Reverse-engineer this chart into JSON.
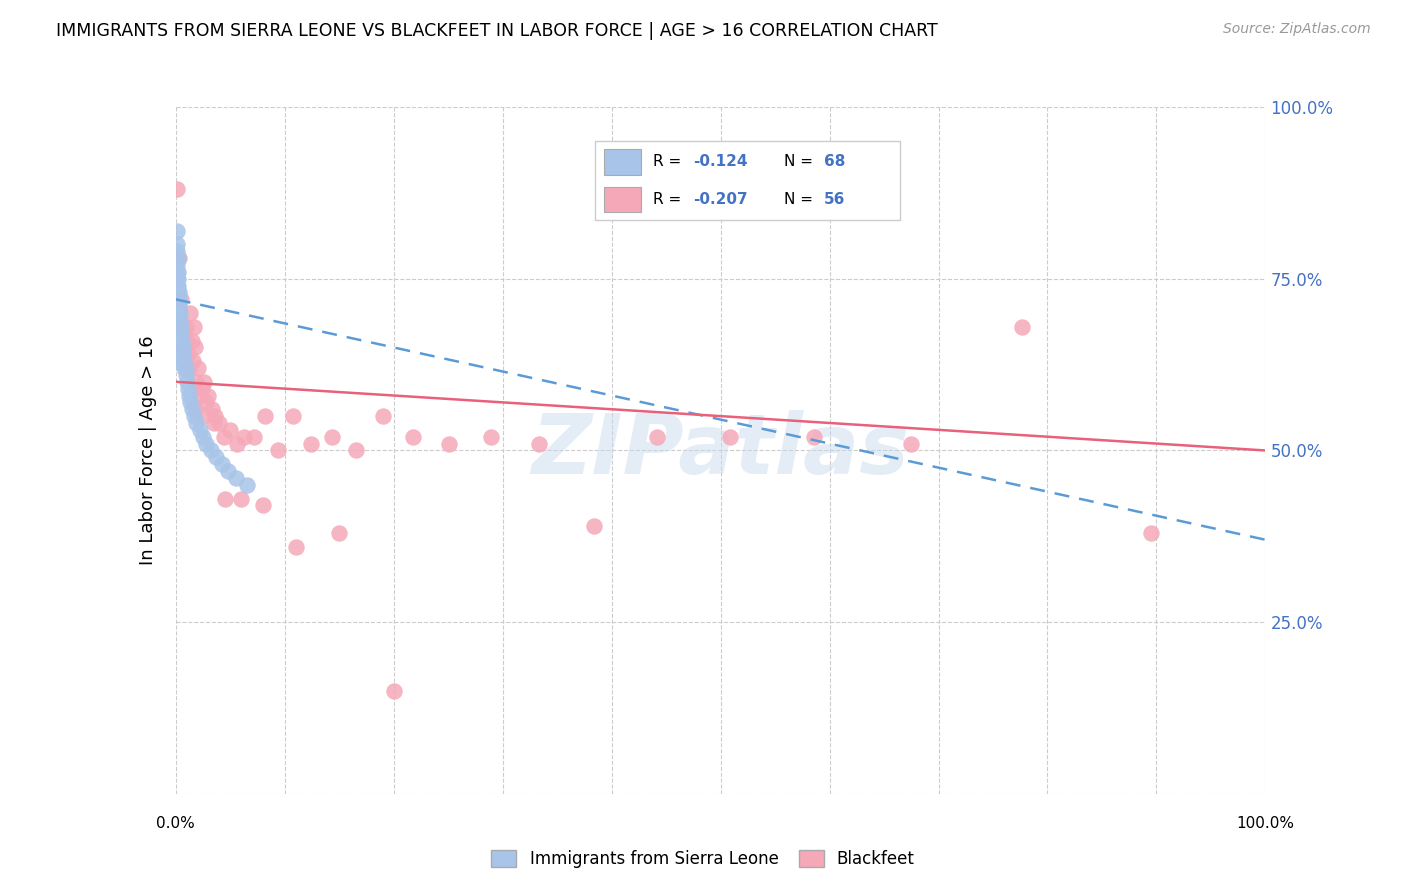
{
  "title": "IMMIGRANTS FROM SIERRA LEONE VS BLACKFEET IN LABOR FORCE | AGE > 16 CORRELATION CHART",
  "source": "Source: ZipAtlas.com",
  "ylabel": "In Labor Force | Age > 16",
  "y_ticks": [
    0.0,
    0.25,
    0.5,
    0.75,
    1.0
  ],
  "y_tick_labels": [
    "",
    "25.0%",
    "50.0%",
    "75.0%",
    "100.0%"
  ],
  "sierra_leone_R": -0.124,
  "sierra_leone_N": 68,
  "blackfeet_R": -0.207,
  "blackfeet_N": 56,
  "sierra_leone_color": "#a8c4e8",
  "blackfeet_color": "#f5a8b8",
  "sierra_leone_line_color": "#5b9bd5",
  "blackfeet_line_color": "#e8607a",
  "watermark": "ZIPatlas",
  "sierra_leone_x": [
    0.001,
    0.001,
    0.001,
    0.001,
    0.001,
    0.001,
    0.001,
    0.001,
    0.001,
    0.001,
    0.002,
    0.002,
    0.002,
    0.002,
    0.002,
    0.002,
    0.002,
    0.002,
    0.002,
    0.002,
    0.002,
    0.002,
    0.002,
    0.002,
    0.002,
    0.003,
    0.003,
    0.003,
    0.003,
    0.003,
    0.003,
    0.003,
    0.003,
    0.003,
    0.004,
    0.004,
    0.004,
    0.004,
    0.004,
    0.005,
    0.005,
    0.005,
    0.005,
    0.006,
    0.006,
    0.006,
    0.007,
    0.007,
    0.008,
    0.008,
    0.009,
    0.009,
    0.01,
    0.011,
    0.012,
    0.013,
    0.015,
    0.017,
    0.019,
    0.022,
    0.025,
    0.028,
    0.032,
    0.037,
    0.042,
    0.048,
    0.055,
    0.065
  ],
  "sierra_leone_y": [
    0.82,
    0.8,
    0.78,
    0.79,
    0.77,
    0.76,
    0.75,
    0.74,
    0.73,
    0.72,
    0.78,
    0.76,
    0.75,
    0.74,
    0.73,
    0.72,
    0.71,
    0.7,
    0.69,
    0.68,
    0.67,
    0.66,
    0.65,
    0.64,
    0.63,
    0.73,
    0.72,
    0.71,
    0.7,
    0.69,
    0.68,
    0.67,
    0.66,
    0.65,
    0.7,
    0.69,
    0.68,
    0.67,
    0.66,
    0.68,
    0.67,
    0.66,
    0.65,
    0.66,
    0.65,
    0.64,
    0.65,
    0.64,
    0.63,
    0.62,
    0.62,
    0.61,
    0.6,
    0.59,
    0.58,
    0.57,
    0.56,
    0.55,
    0.54,
    0.53,
    0.52,
    0.51,
    0.5,
    0.49,
    0.48,
    0.47,
    0.46,
    0.45
  ],
  "blackfeet_x": [
    0.001,
    0.003,
    0.005,
    0.007,
    0.008,
    0.009,
    0.01,
    0.011,
    0.012,
    0.013,
    0.015,
    0.016,
    0.017,
    0.018,
    0.019,
    0.02,
    0.022,
    0.024,
    0.026,
    0.028,
    0.03,
    0.033,
    0.036,
    0.04,
    0.044,
    0.05,
    0.056,
    0.063,
    0.072,
    0.082,
    0.094,
    0.108,
    0.124,
    0.143,
    0.165,
    0.19,
    0.218,
    0.251,
    0.289,
    0.333,
    0.384,
    0.442,
    0.509,
    0.586,
    0.675,
    0.777,
    0.895,
    0.018,
    0.025,
    0.035,
    0.045,
    0.06,
    0.08,
    0.11,
    0.15,
    0.2
  ],
  "blackfeet_y": [
    0.88,
    0.78,
    0.72,
    0.68,
    0.65,
    0.68,
    0.66,
    0.64,
    0.62,
    0.7,
    0.66,
    0.63,
    0.68,
    0.65,
    0.6,
    0.62,
    0.58,
    0.59,
    0.6,
    0.57,
    0.58,
    0.56,
    0.55,
    0.54,
    0.52,
    0.53,
    0.51,
    0.52,
    0.52,
    0.55,
    0.5,
    0.55,
    0.51,
    0.52,
    0.5,
    0.55,
    0.52,
    0.51,
    0.52,
    0.51,
    0.39,
    0.52,
    0.52,
    0.52,
    0.51,
    0.68,
    0.38,
    0.56,
    0.55,
    0.54,
    0.43,
    0.43,
    0.42,
    0.36,
    0.38,
    0.15
  ]
}
